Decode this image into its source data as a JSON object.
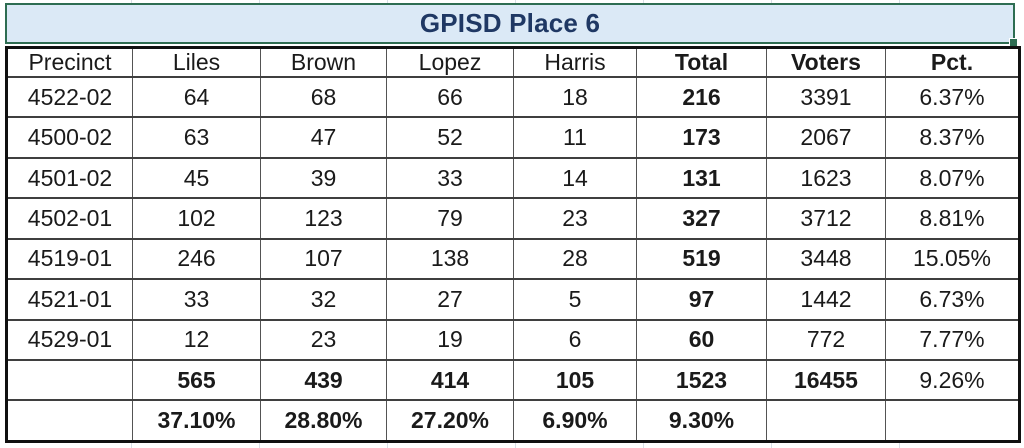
{
  "title": "GPISD Place 6",
  "table": {
    "columns": [
      "Precinct",
      "Liles",
      "Brown",
      "Lopez",
      "Harris",
      "Total",
      "Voters",
      "Pct."
    ],
    "data_rows": [
      [
        "4522-02",
        "64",
        "68",
        "66",
        "18",
        "216",
        "3391",
        "6.37%"
      ],
      [
        "4500-02",
        "63",
        "47",
        "52",
        "11",
        "173",
        "2067",
        "8.37%"
      ],
      [
        "4501-02",
        "45",
        "39",
        "33",
        "14",
        "131",
        "1623",
        "8.07%"
      ],
      [
        "4502-01",
        "102",
        "123",
        "79",
        "23",
        "327",
        "3712",
        "8.81%"
      ],
      [
        "4519-01",
        "246",
        "107",
        "138",
        "28",
        "519",
        "3448",
        "15.05%"
      ],
      [
        "4521-01",
        "33",
        "32",
        "27",
        "5",
        "97",
        "1442",
        "6.73%"
      ],
      [
        "4529-01",
        "12",
        "23",
        "19",
        "6",
        "60",
        "772",
        "7.77%"
      ]
    ],
    "totals_row": [
      "",
      "565",
      "439",
      "414",
      "105",
      "1523",
      "16455",
      "9.26%"
    ],
    "percent_row": [
      "",
      "37.10%",
      "28.80%",
      "27.20%",
      "6.90%",
      "9.30%",
      "",
      ""
    ]
  },
  "colors": {
    "title_fill": "#dbe9f6",
    "title_text": "#1f3864",
    "selection_green": "#2e6d52",
    "table_border": "#101010",
    "inner_line": "#3f3f3f",
    "sheet_gridline": "#d9dee6"
  },
  "chart_data": {
    "type": "table",
    "title": "GPISD Place 6",
    "categories": [
      "Precinct",
      "Liles",
      "Brown",
      "Lopez",
      "Harris",
      "Total",
      "Voters",
      "Pct."
    ],
    "series": [
      {
        "name": "Liles",
        "values": [
          64,
          63,
          45,
          102,
          246,
          33,
          12
        ],
        "total": 565,
        "share": "37.10%"
      },
      {
        "name": "Brown",
        "values": [
          68,
          47,
          39,
          123,
          107,
          32,
          23
        ],
        "total": 439,
        "share": "28.80%"
      },
      {
        "name": "Lopez",
        "values": [
          66,
          52,
          33,
          79,
          138,
          27,
          19
        ],
        "total": 414,
        "share": "27.20%"
      },
      {
        "name": "Harris",
        "values": [
          18,
          11,
          14,
          23,
          28,
          5,
          6
        ],
        "total": 105,
        "share": "6.90%"
      }
    ],
    "precincts": [
      "4522-02",
      "4500-02",
      "4501-02",
      "4502-01",
      "4519-01",
      "4521-01",
      "4529-01"
    ],
    "votes_total": [
      216,
      173,
      131,
      327,
      519,
      97,
      60
    ],
    "registered_voters": [
      3391,
      2067,
      1623,
      3712,
      3448,
      1442,
      772
    ],
    "turnout_pct": [
      "6.37%",
      "8.37%",
      "8.07%",
      "8.81%",
      "15.05%",
      "6.73%",
      "7.77%"
    ],
    "grand_total_votes": 1523,
    "grand_total_voters": 16455,
    "overall_turnout": "9.26%",
    "overall_share": "9.30%"
  }
}
